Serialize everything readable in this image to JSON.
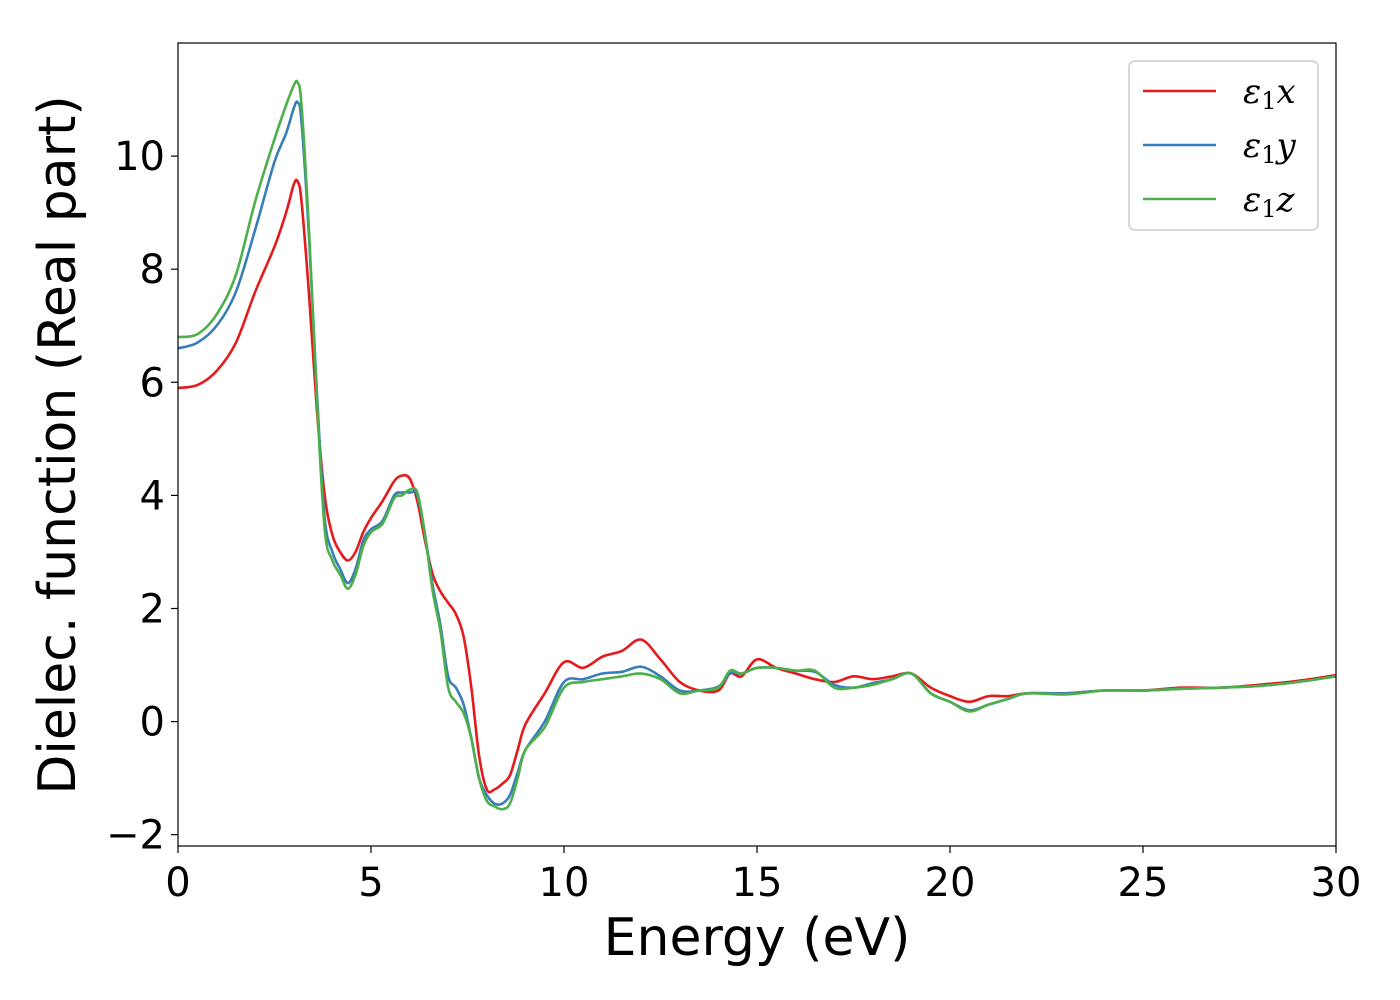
{
  "chart_data": {
    "type": "line",
    "title": "",
    "xlabel": "Energy (eV)",
    "ylabel": "Dielec. function (Real part)",
    "xlim": [
      0,
      30
    ],
    "ylim": [
      -2.2,
      12.0
    ],
    "xticks": [
      0,
      5,
      10,
      15,
      20,
      25,
      30
    ],
    "xtick_labels": [
      "0",
      "5",
      "10",
      "15",
      "20",
      "25",
      "30"
    ],
    "yticks": [
      -2,
      0,
      2,
      4,
      6,
      8,
      10
    ],
    "ytick_labels": [
      "−2",
      "0",
      "2",
      "4",
      "6",
      "8",
      "10"
    ],
    "grid": false,
    "legend_position": "top-right",
    "series": [
      {
        "name": "ε1x",
        "legend_main": "ε",
        "legend_sub": "1",
        "legend_var": "x",
        "color": "#e41a1c",
        "x": [
          0,
          0.5,
          1.0,
          1.5,
          2.0,
          2.5,
          2.8,
          3.0,
          3.1,
          3.2,
          3.4,
          3.6,
          3.8,
          4.0,
          4.2,
          4.4,
          4.6,
          4.8,
          5.0,
          5.3,
          5.6,
          5.8,
          6.0,
          6.2,
          6.4,
          6.6,
          6.8,
          7.0,
          7.2,
          7.4,
          7.6,
          7.8,
          8.0,
          8.2,
          8.4,
          8.6,
          8.8,
          9.0,
          9.5,
          10.0,
          10.5,
          11.0,
          11.5,
          12.0,
          12.5,
          13.0,
          13.5,
          14.0,
          14.3,
          14.6,
          15.0,
          15.5,
          16.0,
          16.5,
          17.0,
          17.5,
          18.0,
          18.5,
          19.0,
          19.5,
          20.0,
          20.5,
          21.0,
          21.5,
          22.0,
          23.0,
          24.0,
          25.0,
          26.0,
          27.0,
          28.0,
          29.0,
          30.0
        ],
        "y": [
          5.9,
          5.95,
          6.2,
          6.7,
          7.6,
          8.4,
          9.0,
          9.5,
          9.55,
          9.2,
          7.5,
          5.5,
          4.0,
          3.3,
          3.0,
          2.85,
          3.0,
          3.35,
          3.6,
          3.9,
          4.25,
          4.35,
          4.3,
          3.9,
          3.2,
          2.6,
          2.3,
          2.1,
          1.9,
          1.5,
          0.6,
          -0.6,
          -1.2,
          -1.2,
          -1.1,
          -0.95,
          -0.5,
          -0.05,
          0.5,
          1.05,
          0.95,
          1.15,
          1.25,
          1.45,
          1.1,
          0.7,
          0.55,
          0.55,
          0.85,
          0.8,
          1.1,
          0.95,
          0.85,
          0.75,
          0.7,
          0.8,
          0.75,
          0.8,
          0.85,
          0.6,
          0.45,
          0.35,
          0.45,
          0.45,
          0.5,
          0.5,
          0.55,
          0.55,
          0.6,
          0.6,
          0.65,
          0.72,
          0.82
        ]
      },
      {
        "name": "ε1y",
        "legend_main": "ε",
        "legend_sub": "1",
        "legend_var": "y",
        "color": "#377eb8",
        "x": [
          0,
          0.5,
          1.0,
          1.5,
          2.0,
          2.5,
          2.8,
          3.0,
          3.1,
          3.2,
          3.4,
          3.6,
          3.8,
          4.0,
          4.2,
          4.4,
          4.6,
          4.8,
          5.0,
          5.3,
          5.6,
          5.8,
          6.0,
          6.2,
          6.4,
          6.6,
          6.8,
          7.0,
          7.2,
          7.4,
          7.6,
          7.8,
          8.0,
          8.2,
          8.4,
          8.6,
          8.8,
          9.0,
          9.5,
          10.0,
          10.5,
          11.0,
          11.5,
          12.0,
          12.5,
          13.0,
          13.5,
          14.0,
          14.3,
          14.6,
          15.0,
          15.5,
          16.0,
          16.5,
          17.0,
          17.5,
          18.0,
          18.5,
          19.0,
          19.5,
          20.0,
          20.5,
          21.0,
          21.5,
          22.0,
          23.0,
          24.0,
          25.0,
          26.0,
          27.0,
          28.0,
          29.0,
          30.0
        ],
        "y": [
          6.6,
          6.7,
          7.0,
          7.6,
          8.7,
          9.9,
          10.4,
          10.85,
          10.95,
          10.6,
          8.5,
          5.8,
          3.6,
          3.0,
          2.7,
          2.45,
          2.7,
          3.2,
          3.4,
          3.55,
          4.0,
          4.05,
          4.05,
          4.0,
          3.3,
          2.4,
          1.7,
          0.8,
          0.6,
          0.3,
          -0.3,
          -1.0,
          -1.3,
          -1.45,
          -1.45,
          -1.3,
          -0.9,
          -0.5,
          0.0,
          0.7,
          0.75,
          0.85,
          0.88,
          0.97,
          0.8,
          0.55,
          0.55,
          0.62,
          0.85,
          0.85,
          0.95,
          0.95,
          0.9,
          0.88,
          0.65,
          0.6,
          0.68,
          0.75,
          0.85,
          0.5,
          0.35,
          0.2,
          0.3,
          0.4,
          0.5,
          0.5,
          0.55,
          0.55,
          0.58,
          0.6,
          0.63,
          0.7,
          0.8
        ]
      },
      {
        "name": "ε1z",
        "legend_main": "ε",
        "legend_sub": "1",
        "legend_var": "z",
        "color": "#4daf4a",
        "x": [
          0,
          0.5,
          1.0,
          1.5,
          2.0,
          2.5,
          2.8,
          3.0,
          3.1,
          3.2,
          3.4,
          3.6,
          3.8,
          4.0,
          4.2,
          4.4,
          4.6,
          4.8,
          5.0,
          5.3,
          5.6,
          5.8,
          6.0,
          6.2,
          6.4,
          6.6,
          6.8,
          7.0,
          7.2,
          7.4,
          7.6,
          7.8,
          8.0,
          8.2,
          8.4,
          8.6,
          8.8,
          9.0,
          9.5,
          10.0,
          10.5,
          11.0,
          11.5,
          12.0,
          12.5,
          13.0,
          13.5,
          14.0,
          14.3,
          14.6,
          15.0,
          15.5,
          16.0,
          16.5,
          17.0,
          17.5,
          18.0,
          18.5,
          19.0,
          19.5,
          20.0,
          20.5,
          21.0,
          21.5,
          22.0,
          23.0,
          24.0,
          25.0,
          26.0,
          27.0,
          28.0,
          29.0,
          30.0
        ],
        "y": [
          6.8,
          6.85,
          7.2,
          7.9,
          9.2,
          10.3,
          10.9,
          11.25,
          11.3,
          10.9,
          8.6,
          5.7,
          3.4,
          2.85,
          2.6,
          2.35,
          2.6,
          3.1,
          3.35,
          3.5,
          3.95,
          4.0,
          4.1,
          4.05,
          3.3,
          2.3,
          1.6,
          0.6,
          0.35,
          0.15,
          -0.3,
          -1.0,
          -1.4,
          -1.5,
          -1.55,
          -1.45,
          -1.0,
          -0.5,
          -0.1,
          0.6,
          0.7,
          0.75,
          0.8,
          0.85,
          0.75,
          0.5,
          0.55,
          0.6,
          0.9,
          0.85,
          0.95,
          0.95,
          0.9,
          0.9,
          0.6,
          0.6,
          0.65,
          0.75,
          0.85,
          0.5,
          0.35,
          0.18,
          0.3,
          0.4,
          0.5,
          0.48,
          0.55,
          0.55,
          0.58,
          0.6,
          0.63,
          0.7,
          0.8
        ]
      }
    ]
  }
}
